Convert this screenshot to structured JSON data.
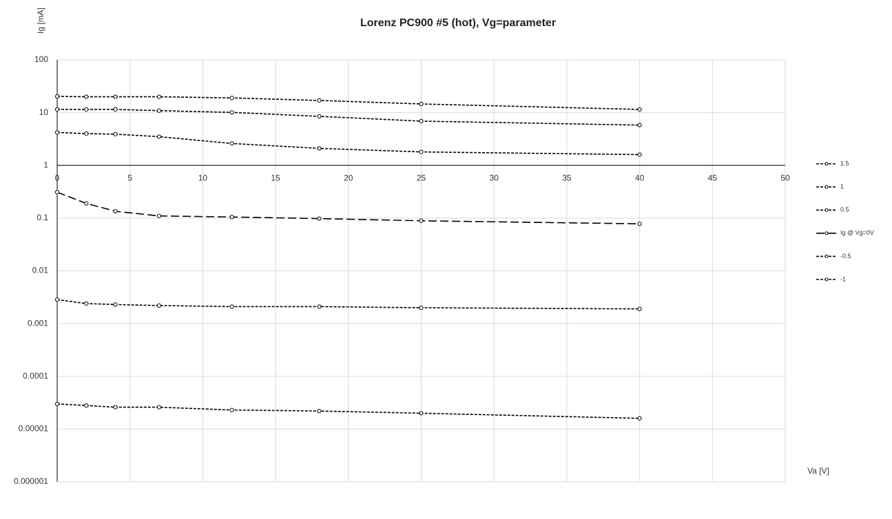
{
  "chart_data": {
    "type": "line",
    "title": "Lorenz PC900 #5 (hot), Vg=parameter",
    "x_label": "Va [V]",
    "y_label": "Ig [mA]",
    "x": [
      0,
      2,
      4,
      7,
      12,
      18,
      25,
      40
    ],
    "xlim": [
      0,
      50
    ],
    "xticks": [
      0,
      5,
      10,
      15,
      20,
      25,
      30,
      35,
      40,
      45,
      50
    ],
    "ylim": [
      1e-06,
      100
    ],
    "yticks": [
      100,
      10,
      1,
      0.1,
      0.01,
      0.001,
      0.0001,
      1e-05,
      1e-06
    ],
    "y_scale": "log",
    "x_axis_at": 1,
    "grid": true,
    "legend": "right",
    "series": [
      {
        "name": "1.5",
        "color": "#000000",
        "dash": "4,2",
        "values": [
          20.3,
          20,
          20,
          20,
          19,
          17,
          14.6,
          11.5
        ]
      },
      {
        "name": "1",
        "color": "#000000",
        "dash": "4,2",
        "values": [
          11.5,
          11.5,
          11.5,
          10.9,
          10.1,
          8.5,
          6.9,
          5.8
        ]
      },
      {
        "name": "0.5",
        "color": "#000000",
        "dash": "4,2",
        "values": [
          4.2,
          4.0,
          3.9,
          3.5,
          2.6,
          2.1,
          1.8,
          1.6
        ]
      },
      {
        "name": "Ig @ Vg=0V",
        "color": "#000000",
        "dash": "12,5",
        "values": [
          0.31,
          0.19,
          0.135,
          0.11,
          0.105,
          0.098,
          0.089,
          0.078
        ]
      },
      {
        "name": "-0.5",
        "color": "#000000",
        "dash": "4,2",
        "values": [
          0.00285,
          0.0024,
          0.0023,
          0.0022,
          0.0021,
          0.0021,
          0.002,
          0.0019
        ]
      },
      {
        "name": "-1",
        "color": "#000000",
        "dash": "4,2",
        "values": [
          3e-05,
          2.8e-05,
          2.6e-05,
          2.6e-05,
          2.3e-05,
          2.2e-05,
          2e-05,
          1.6e-05
        ]
      }
    ]
  }
}
